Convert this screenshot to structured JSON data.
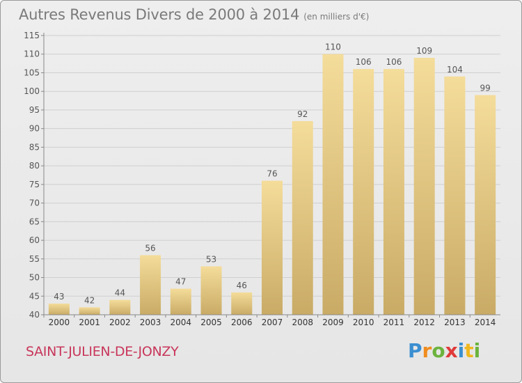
{
  "header": {
    "title": "Autres Revenus Divers de 2000 à 2014",
    "subtitle": "(en milliers d'€)"
  },
  "footer": {
    "commune": "SAINT-JULIEN-DE-JONZY",
    "logo_text": "Proxiti",
    "logo_letters": [
      {
        "ch": "P",
        "color": "#3a8fd1"
      },
      {
        "ch": "r",
        "color": "#f08c1e"
      },
      {
        "ch": "o",
        "color": "#6cb33e"
      },
      {
        "ch": "x",
        "color": "#e03a3a"
      },
      {
        "ch": "i",
        "color": "#3a8fd1"
      },
      {
        "ch": "t",
        "color": "#f0b81e"
      },
      {
        "ch": "i",
        "color": "#6cb33e"
      }
    ]
  },
  "chart_data": {
    "type": "bar",
    "categories": [
      "2000",
      "2001",
      "2002",
      "2003",
      "2004",
      "2005",
      "2006",
      "2007",
      "2008",
      "2009",
      "2010",
      "2011",
      "2012",
      "2013",
      "2014"
    ],
    "values": [
      43,
      42,
      44,
      56,
      47,
      53,
      46,
      76,
      92,
      110,
      106,
      106,
      109,
      104,
      99
    ],
    "title": "Autres Revenus Divers de 2000 à 2014",
    "xlabel": "",
    "ylabel": "",
    "ylim": [
      40,
      115
    ],
    "yticks": [
      40,
      45,
      50,
      55,
      60,
      65,
      70,
      75,
      80,
      85,
      90,
      95,
      100,
      105,
      110,
      115
    ],
    "grid": true,
    "bar_color_top": "#f4dc9a",
    "bar_color_bottom": "#c9ab66",
    "gridline_color": "#cfcfcf",
    "axis_label_color": "#555555"
  }
}
